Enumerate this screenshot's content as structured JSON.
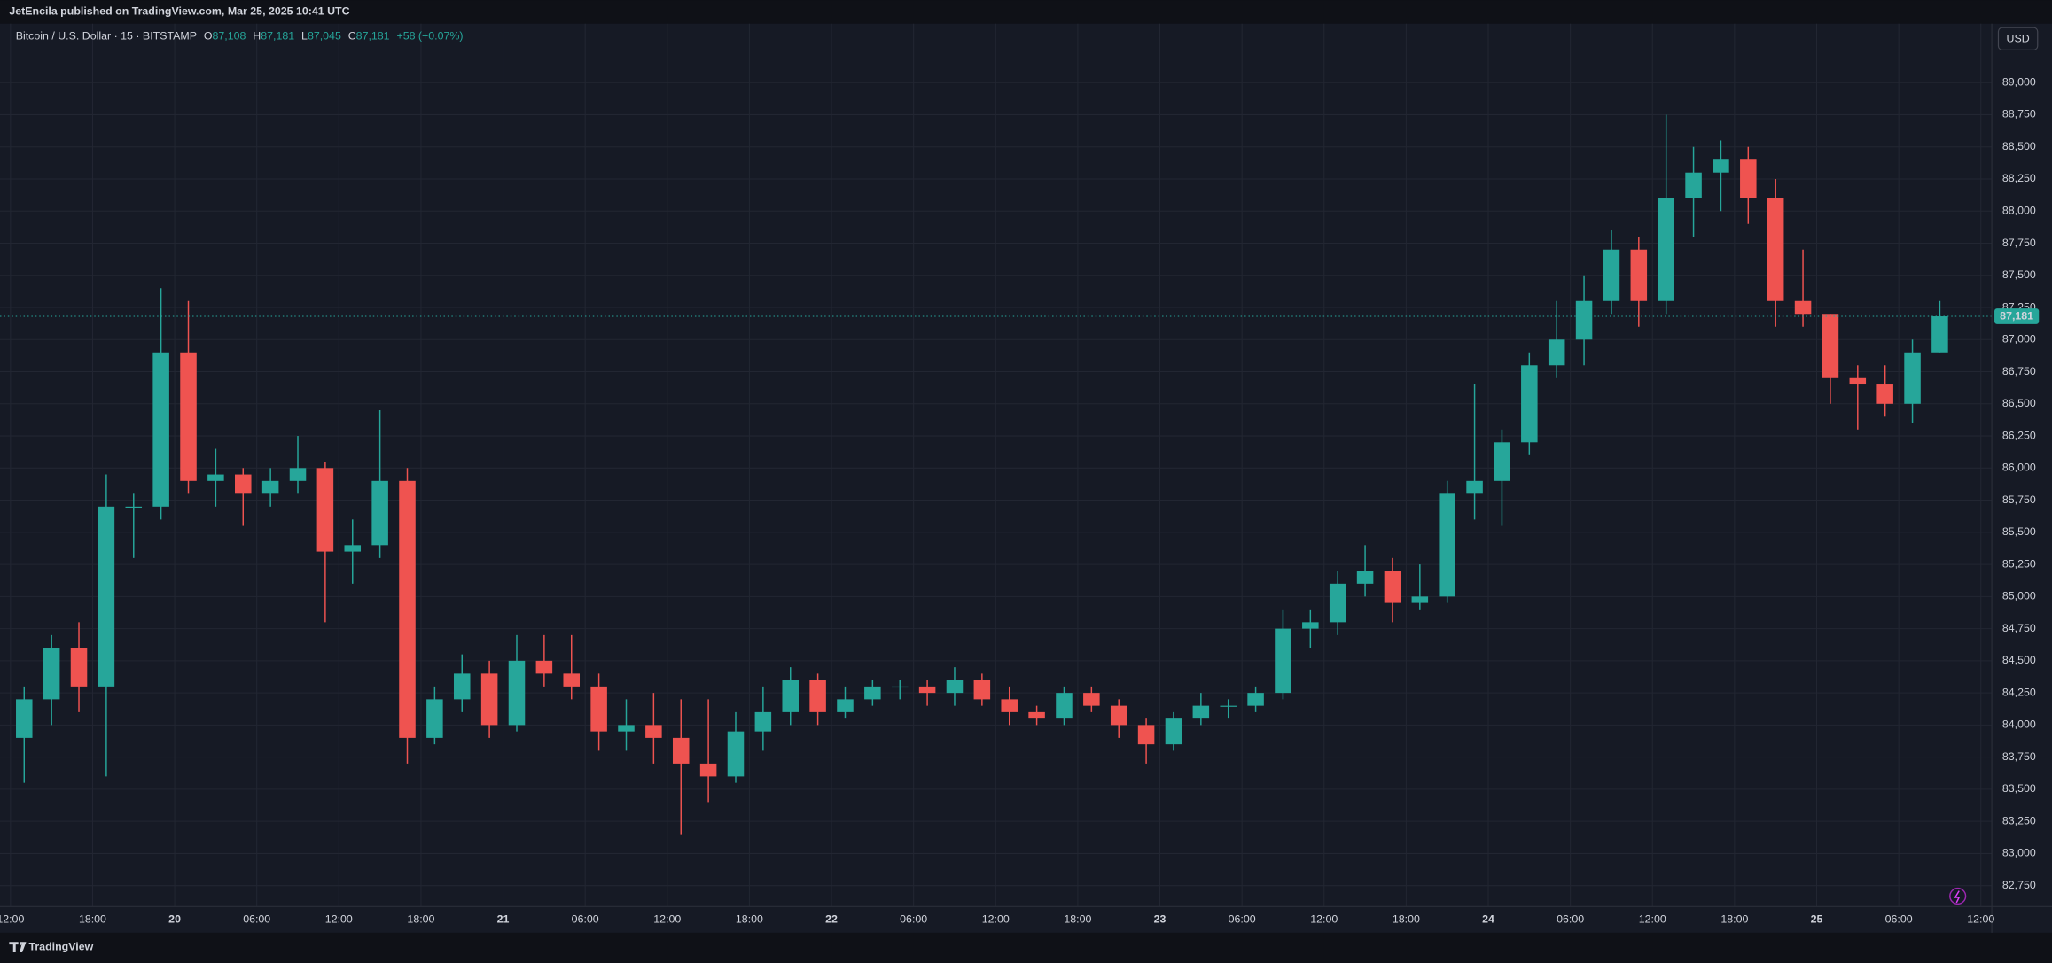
{
  "header": "JetEncila published on TradingView.com, Mar 25, 2025 10:41 UTC",
  "footer": "TradingView",
  "chart_data": {
    "type": "candlestick",
    "legend": {
      "symbol": "Bitcoin / U.S. Dollar · 15 · BITSTAMP",
      "items": [
        {
          "label": "O",
          "value": "87,108"
        },
        {
          "label": "H",
          "value": "87,181"
        },
        {
          "label": "L",
          "value": "87,045"
        },
        {
          "label": "C",
          "value": "87,181"
        }
      ],
      "change": "+58 (+0.07%)"
    },
    "currency": "USD",
    "up_color": "#26a69a",
    "down_color": "#ef5350",
    "grid": true,
    "x": [
      "2025-03-19T12:00",
      "2025-03-19T14:00",
      "2025-03-19T16:00",
      "2025-03-19T18:00",
      "2025-03-19T20:00",
      "2025-03-19T22:00",
      "2025-03-20T00:00",
      "2025-03-20T02:00",
      "2025-03-20T04:00",
      "2025-03-20T06:00",
      "2025-03-20T08:00",
      "2025-03-20T10:00",
      "2025-03-20T12:00",
      "2025-03-20T14:00",
      "2025-03-20T16:00",
      "2025-03-20T18:00",
      "2025-03-20T20:00",
      "2025-03-20T22:00",
      "2025-03-21T00:00",
      "2025-03-21T02:00",
      "2025-03-21T04:00",
      "2025-03-21T06:00",
      "2025-03-21T08:00",
      "2025-03-21T10:00",
      "2025-03-21T12:00",
      "2025-03-21T14:00",
      "2025-03-21T16:00",
      "2025-03-21T18:00",
      "2025-03-21T20:00",
      "2025-03-21T22:00",
      "2025-03-22T00:00",
      "2025-03-22T02:00",
      "2025-03-22T04:00",
      "2025-03-22T06:00",
      "2025-03-22T08:00",
      "2025-03-22T10:00",
      "2025-03-22T12:00",
      "2025-03-22T14:00",
      "2025-03-22T16:00",
      "2025-03-22T18:00",
      "2025-03-22T20:00",
      "2025-03-22T22:00",
      "2025-03-23T00:00",
      "2025-03-23T02:00",
      "2025-03-23T04:00",
      "2025-03-23T06:00",
      "2025-03-23T08:00",
      "2025-03-23T10:00",
      "2025-03-23T12:00",
      "2025-03-23T14:00",
      "2025-03-23T16:00",
      "2025-03-23T18:00",
      "2025-03-23T20:00",
      "2025-03-23T22:00",
      "2025-03-24T00:00",
      "2025-03-24T02:00",
      "2025-03-24T04:00",
      "2025-03-24T06:00",
      "2025-03-24T08:00",
      "2025-03-24T10:00",
      "2025-03-24T12:00",
      "2025-03-24T14:00",
      "2025-03-24T16:00",
      "2025-03-24T18:00",
      "2025-03-24T20:00",
      "2025-03-24T22:00",
      "2025-03-25T00:00",
      "2025-03-25T02:00",
      "2025-03-25T04:00",
      "2025-03-25T06:00",
      "2025-03-25T08:00"
    ],
    "open": [
      83900,
      84200,
      84600,
      84300,
      85700,
      85700,
      86900,
      85900,
      85950,
      85800,
      85900,
      86000,
      85350,
      85400,
      85900,
      83900,
      84200,
      84400,
      84000,
      84500,
      84400,
      84300,
      83950,
      84000,
      83900,
      83700,
      83600,
      83950,
      84100,
      84350,
      84100,
      84200,
      84300,
      84300,
      84250,
      84350,
      84200,
      84100,
      84050,
      84250,
      84150,
      84000,
      83850,
      84050,
      84150,
      84150,
      84250,
      84750,
      84800,
      85100,
      85200,
      84950,
      85000,
      85800,
      85900,
      86200,
      86800,
      87000,
      87300,
      87700,
      87300,
      88100,
      88300,
      88400,
      88100,
      87300,
      87200,
      86700,
      86650,
      86500,
      86900
    ],
    "high": [
      84300,
      84700,
      84800,
      85950,
      85800,
      87400,
      87300,
      86150,
      86000,
      86000,
      86250,
      86050,
      85600,
      86450,
      86000,
      84300,
      84550,
      84500,
      84700,
      84700,
      84700,
      84400,
      84200,
      84250,
      84200,
      84200,
      84100,
      84300,
      84450,
      84400,
      84300,
      84350,
      84350,
      84350,
      84450,
      84400,
      84300,
      84150,
      84300,
      84300,
      84200,
      84050,
      84100,
      84250,
      84200,
      84300,
      84900,
      84900,
      85200,
      85400,
      85300,
      85250,
      85900,
      86650,
      86300,
      86900,
      87300,
      87500,
      87850,
      87800,
      88750,
      88500,
      88550,
      88500,
      88250,
      87700,
      87200,
      86800,
      86800,
      87000,
      87300
    ],
    "low": [
      83550,
      84000,
      84100,
      83600,
      85300,
      85600,
      85800,
      85700,
      85550,
      85700,
      85800,
      84800,
      85100,
      85300,
      83700,
      83850,
      84100,
      83900,
      83950,
      84300,
      84200,
      83800,
      83800,
      83700,
      83150,
      83400,
      83550,
      83800,
      84000,
      84000,
      84050,
      84150,
      84200,
      84150,
      84150,
      84150,
      84000,
      84000,
      84000,
      84100,
      83900,
      83700,
      83800,
      84000,
      84050,
      84100,
      84200,
      84600,
      84700,
      85000,
      84800,
      84900,
      84950,
      85600,
      85550,
      86100,
      86700,
      86800,
      87200,
      87100,
      87200,
      87800,
      88000,
      87900,
      87100,
      87100,
      86500,
      86300,
      86400,
      86350,
      86900
    ],
    "close": [
      84200,
      84600,
      84300,
      85700,
      85700,
      86900,
      85900,
      85950,
      85800,
      85900,
      86000,
      85350,
      85400,
      85900,
      83900,
      84200,
      84400,
      84000,
      84500,
      84400,
      84300,
      83950,
      84000,
      83900,
      83700,
      83600,
      83950,
      84100,
      84350,
      84100,
      84200,
      84300,
      84300,
      84250,
      84350,
      84200,
      84100,
      84050,
      84250,
      84150,
      84000,
      83850,
      84050,
      84150,
      84150,
      84250,
      84750,
      84800,
      85100,
      85200,
      84950,
      85000,
      85800,
      85900,
      86200,
      86800,
      87000,
      87300,
      87700,
      87300,
      88100,
      88300,
      88400,
      88100,
      87300,
      87200,
      86700,
      86650,
      86500,
      86900,
      87181
    ],
    "last_price": {
      "value": 87181,
      "label": "87,181"
    },
    "ylim": [
      82587,
      89458
    ],
    "yticks": [
      {
        "value": 82750,
        "label": "82,750"
      },
      {
        "value": 83000,
        "label": "83,000"
      },
      {
        "value": 83250,
        "label": "83,250"
      },
      {
        "value": 83500,
        "label": "83,500"
      },
      {
        "value": 83750,
        "label": "83,750"
      },
      {
        "value": 84000,
        "label": "84,000"
      },
      {
        "value": 84250,
        "label": "84,250"
      },
      {
        "value": 84500,
        "label": "84,500"
      },
      {
        "value": 84750,
        "label": "84,750"
      },
      {
        "value": 85000,
        "label": "85,000"
      },
      {
        "value": 85250,
        "label": "85,250"
      },
      {
        "value": 85500,
        "label": "85,500"
      },
      {
        "value": 85750,
        "label": "85,750"
      },
      {
        "value": 86000,
        "label": "86,000"
      },
      {
        "value": 86250,
        "label": "86,250"
      },
      {
        "value": 86500,
        "label": "86,500"
      },
      {
        "value": 86750,
        "label": "86,750"
      },
      {
        "value": 87000,
        "label": "87,000"
      },
      {
        "value": 87250,
        "label": "87,250"
      },
      {
        "value": 87500,
        "label": "87,500"
      },
      {
        "value": 87750,
        "label": "87,750"
      },
      {
        "value": 88000,
        "label": "88,000"
      },
      {
        "value": 88250,
        "label": "88,250"
      },
      {
        "value": 88500,
        "label": "88,500"
      },
      {
        "value": 88750,
        "label": "88,750"
      },
      {
        "value": 89000,
        "label": "89,000"
      }
    ],
    "xlim": [
      "2025-03-19T11:14",
      "2025-03-25T12:48"
    ],
    "xticks": [
      {
        "value": "2025-03-19T12:00",
        "label": "12:00"
      },
      {
        "value": "2025-03-19T18:00",
        "label": "18:00"
      },
      {
        "value": "2025-03-20T00:00",
        "label": "20"
      },
      {
        "value": "2025-03-20T06:00",
        "label": "06:00"
      },
      {
        "value": "2025-03-20T12:00",
        "label": "12:00"
      },
      {
        "value": "2025-03-20T18:00",
        "label": "18:00"
      },
      {
        "value": "2025-03-21T00:00",
        "label": "21"
      },
      {
        "value": "2025-03-21T06:00",
        "label": "06:00"
      },
      {
        "value": "2025-03-21T12:00",
        "label": "12:00"
      },
      {
        "value": "2025-03-21T18:00",
        "label": "18:00"
      },
      {
        "value": "2025-03-22T00:00",
        "label": "22"
      },
      {
        "value": "2025-03-22T06:00",
        "label": "06:00"
      },
      {
        "value": "2025-03-22T12:00",
        "label": "12:00"
      },
      {
        "value": "2025-03-22T18:00",
        "label": "18:00"
      },
      {
        "value": "2025-03-23T00:00",
        "label": "23"
      },
      {
        "value": "2025-03-23T06:00",
        "label": "06:00"
      },
      {
        "value": "2025-03-23T12:00",
        "label": "12:00"
      },
      {
        "value": "2025-03-23T18:00",
        "label": "18:00"
      },
      {
        "value": "2025-03-24T00:00",
        "label": "24"
      },
      {
        "value": "2025-03-24T06:00",
        "label": "06:00"
      },
      {
        "value": "2025-03-24T12:00",
        "label": "12:00"
      },
      {
        "value": "2025-03-24T18:00",
        "label": "18:00"
      },
      {
        "value": "2025-03-25T00:00",
        "label": "25"
      },
      {
        "value": "2025-03-25T06:00",
        "label": "06:00"
      },
      {
        "value": "2025-03-25T12:00",
        "label": "12:00"
      }
    ]
  }
}
